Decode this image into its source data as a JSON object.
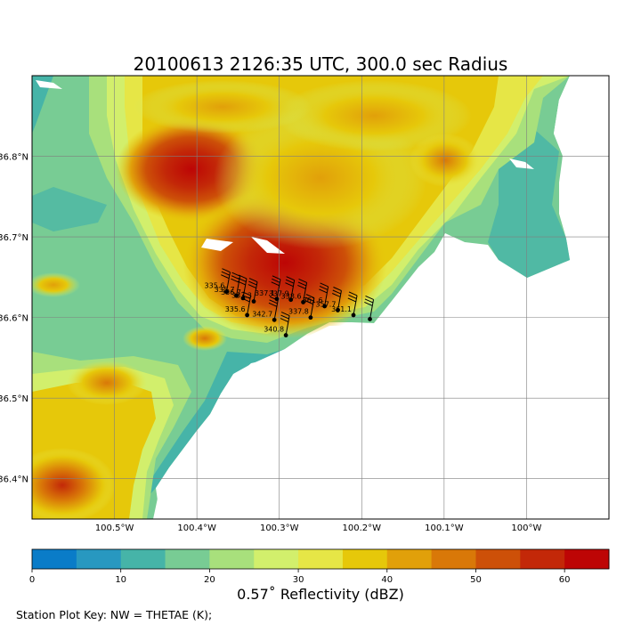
{
  "title": "20100613 2126:35 UTC, 300.0 sec Radius",
  "map": {
    "lon_range": [
      -100.6,
      -99.9
    ],
    "lat_range": [
      36.35,
      36.9
    ],
    "lon_ticks": [
      {
        "value": -100.5,
        "label": "100.5°W"
      },
      {
        "value": -100.4,
        "label": "100.4°W"
      },
      {
        "value": -100.3,
        "label": "100.3°W"
      },
      {
        "value": -100.2,
        "label": "100.2°W"
      },
      {
        "value": -100.1,
        "label": "100.1°W"
      },
      {
        "value": -100.0,
        "label": "100°W"
      }
    ],
    "lat_ticks": [
      {
        "value": 36.8,
        "label": "36.8°N"
      },
      {
        "value": 36.7,
        "label": "36.7°N"
      },
      {
        "value": 36.6,
        "label": "36.6°N"
      },
      {
        "value": 36.5,
        "label": "36.5°N"
      },
      {
        "value": 36.4,
        "label": "36.4°N"
      }
    ],
    "grid": true
  },
  "stations": [
    {
      "lon": -100.364,
      "lat": 36.632,
      "label": "335.6"
    },
    {
      "lon": -100.352,
      "lat": 36.627,
      "label": "335.7"
    },
    {
      "lon": -100.344,
      "lat": 36.624,
      "label": "336.7"
    },
    {
      "lon": -100.331,
      "lat": 36.62,
      "label": "337.3"
    },
    {
      "lon": -100.339,
      "lat": 36.603,
      "label": "335.6"
    },
    {
      "lon": -100.306,
      "lat": 36.597,
      "label": "342.7"
    },
    {
      "lon": -100.303,
      "lat": 36.623,
      "label": "337.1"
    },
    {
      "lon": -100.292,
      "lat": 36.578,
      "label": "340.8"
    },
    {
      "lon": -100.286,
      "lat": 36.622,
      "label": "337.9"
    },
    {
      "lon": -100.271,
      "lat": 36.619,
      "label": "338.6"
    },
    {
      "lon": -100.262,
      "lat": 36.6,
      "label": "337.8"
    },
    {
      "lon": -100.245,
      "lat": 36.614,
      "label": "361.6"
    },
    {
      "lon": -100.229,
      "lat": 36.609,
      "label": "357.7"
    },
    {
      "lon": -100.21,
      "lat": 36.603,
      "label": "361.1"
    },
    {
      "lon": -100.19,
      "lat": 36.598,
      "label": ""
    }
  ],
  "colorbar": {
    "label": "0.57˚ Reflectivity (dBZ)",
    "min": 0,
    "max": 65,
    "step": 5,
    "colors": [
      "#0a7cc8",
      "#2898c0",
      "#46b4a8",
      "#78cc94",
      "#a8e07c",
      "#d2ef6c",
      "#e6e646",
      "#e6c80a",
      "#e1a00a",
      "#d97808",
      "#cd5008",
      "#c32808",
      "#bd0505"
    ],
    "ticks": [
      "0",
      "10",
      "20",
      "30",
      "40",
      "50",
      "60"
    ]
  },
  "station_key": "Station Plot Key: NW = THETAE (K);"
}
